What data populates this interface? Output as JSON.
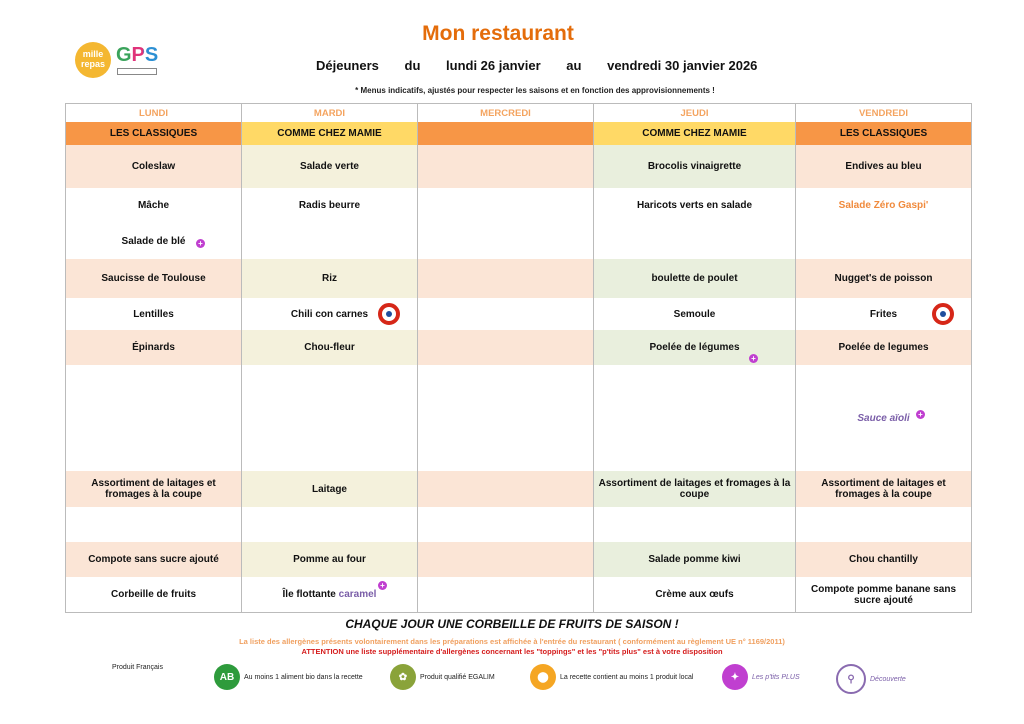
{
  "header": {
    "title": "Mon restaurant",
    "label_dejeuners": "Déjeuners",
    "label_du": "du",
    "start": "lundi 26 janvier",
    "label_au": "au",
    "end": "vendredi 30 janvier 2026",
    "note": "* Menus indicatifs, ajustés pour respecter les saisons et en fonction des approvisionnements !",
    "logo1": "mille repas",
    "logo2": "GPS"
  },
  "days": [
    "LUNDI",
    "MARDI",
    "MERCREDI",
    "JEUDI",
    "VENDREDI"
  ],
  "categories": [
    "LES CLASSIQUES",
    "COMME CHEZ MAMIE",
    "",
    "COMME CHEZ MAMIE",
    "LES CLASSIQUES"
  ],
  "category_colors": [
    "#f79646",
    "#ffd966",
    "#f79646",
    "#ffd966",
    "#f79646"
  ],
  "shade_colors": [
    "#fbe5d6",
    "#f4f1dc",
    "#fbe5d6",
    "#e9efdd",
    "#fbe5d6"
  ],
  "rows": [
    {
      "shaded": true,
      "cells": [
        "Coleslaw",
        "Salade verte",
        "",
        "Brocolis vinaigrette",
        "Endives au bleu"
      ]
    },
    {
      "shaded": false,
      "cells": [
        "Mâche",
        "Radis beurre",
        "",
        "Haricots verts en salade",
        "Salade Zéro Gaspi'"
      ]
    },
    {
      "shaded": false,
      "cells": [
        "Salade de blé",
        "",
        "",
        "",
        ""
      ]
    },
    {
      "shaded": true,
      "cells": [
        "Saucisse de Toulouse",
        "Riz",
        "",
        "boulette de poulet",
        "Nugget's de poisson"
      ]
    },
    {
      "shaded": false,
      "cells": [
        "Lentilles",
        "Chili con carnes",
        "",
        "Semoule",
        "Frites"
      ]
    },
    {
      "shaded": true,
      "cells": [
        "Épinards",
        "Chou-fleur",
        "",
        "Poelée de légumes",
        "Poelée de legumes"
      ]
    },
    {
      "shaded": false,
      "cells": [
        "",
        "",
        "",
        "",
        "Sauce aïoli"
      ]
    },
    {
      "shaded": true,
      "cells": [
        "Assortiment de laitages et fromages à la coupe",
        "Laitage",
        "",
        "Assortiment de laitages et fromages à la coupe",
        "Assortiment de laitages et fromages à la coupe"
      ]
    },
    {
      "shaded": false,
      "cells": [
        "",
        "",
        "",
        "",
        ""
      ]
    },
    {
      "shaded": true,
      "cells": [
        "Compote sans sucre ajouté",
        "Pomme au four",
        "",
        "Salade pomme kiwi",
        "Chou chantilly"
      ]
    },
    {
      "shaded": false,
      "cells": [
        "Corbeille de fruits",
        "Île flottante ",
        "",
        "Crème aux œufs",
        "Compote pomme banane sans sucre ajouté"
      ]
    }
  ],
  "extra": {
    "caramel": "caramel"
  },
  "footer": {
    "fruit": "CHAQUE JOUR UNE CORBEILLE DE FRUITS DE SAISON !",
    "allergens": "La liste des allergènes présents volontairement dans les préparations est affichée à l'entrée du restaurant ( conformément au règlement UE n° 1169/2011)",
    "attention": "ATTENTION une liste supplémentaire d'allergènes concernant les \"toppings\" et les \"p'tits plus\" est à votre disposition",
    "legend": [
      {
        "icon": "french-flag-icon",
        "label": "Produit Français",
        "color": "#d62718"
      },
      {
        "icon": "ab-bio-icon",
        "label": "Au moins 1 aliment bio dans la recette",
        "color": "#2e9b3c"
      },
      {
        "icon": "egalim-icon",
        "label": "Produit qualifié EGALIM",
        "color": "#8aa33a"
      },
      {
        "icon": "location-pin-icon",
        "label": "La recette contient au moins 1 produit local",
        "color": "#f5a623"
      },
      {
        "icon": "ptits-plus-icon",
        "label": "Les p'tits PLUS",
        "color": "#c03fd0"
      },
      {
        "icon": "decouverte-icon",
        "label": "Découverte",
        "color": "#8a6bb0"
      }
    ]
  }
}
